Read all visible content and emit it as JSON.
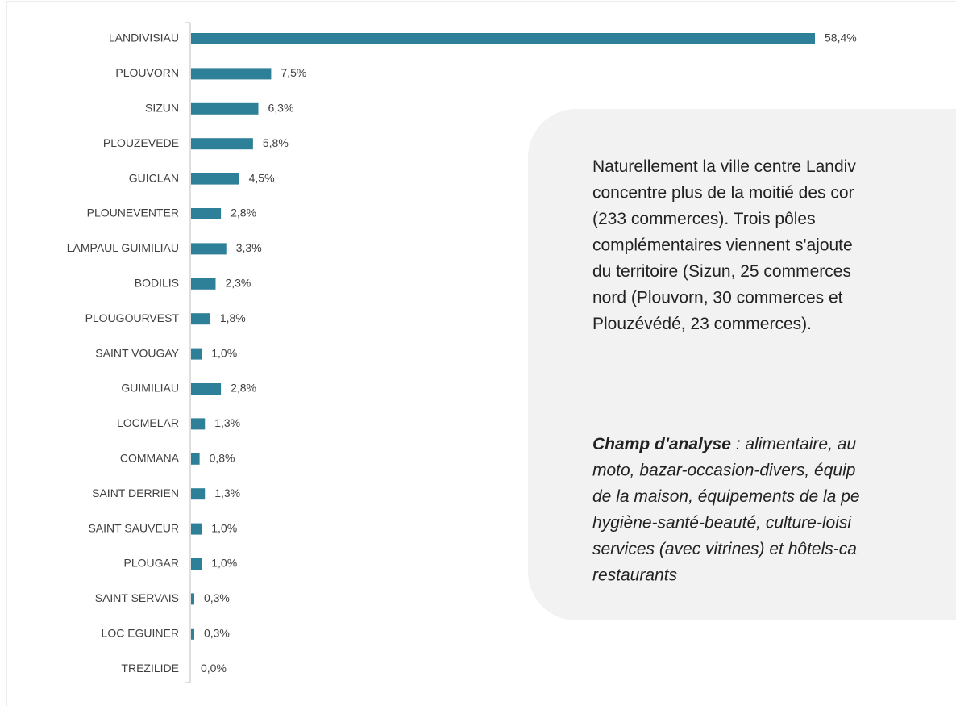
{
  "chart_data": {
    "type": "bar",
    "orientation": "horizontal",
    "color": "#2e7f98",
    "categories": [
      "LANDIVISIAU",
      "PLOUVORN",
      "SIZUN",
      "PLOUZEVEDE",
      "GUICLAN",
      "PLOUNEVENTER",
      "LAMPAUL GUIMILIAU",
      "BODILIS",
      "PLOUGOURVEST",
      "SAINT VOUGAY",
      "GUIMILIAU",
      "LOCMELAR",
      "COMMANA",
      "SAINT DERRIEN",
      "SAINT SAUVEUR",
      "PLOUGAR",
      "SAINT SERVAIS",
      "LOC EGUINER",
      "TREZILIDE"
    ],
    "values": [
      58.4,
      7.5,
      6.3,
      5.8,
      4.5,
      2.8,
      3.3,
      2.3,
      1.8,
      1.0,
      2.8,
      1.3,
      0.8,
      1.3,
      1.0,
      1.0,
      0.3,
      0.3,
      0.0
    ],
    "value_labels": [
      "58,4%",
      "7,5%",
      "6,3%",
      "5,8%",
      "4,5%",
      "2,8%",
      "3,3%",
      "2,3%",
      "1,8%",
      "1,0%",
      "2,8%",
      "1,3%",
      "0,8%",
      "1,3%",
      "1,0%",
      "1,0%",
      "0,3%",
      "0,3%",
      "0,0%"
    ]
  },
  "note_box": {
    "paragraph": [
      "Naturellement la ville centre Landiv",
      "concentre plus de la moitié des cor",
      "(233 commerces). Trois pôles",
      "complémentaires viennent s'ajoute",
      "du territoire (Sizun, 25 commerces",
      "nord (Plouvorn, 30 commerces et",
      "Plouzévédé, 23 commerces)."
    ],
    "scope_label": "Champ d'analyse",
    "scope_lines": [
      " : alimentaire, au",
      "moto, bazar-occasion-divers, équip",
      "de la maison, équipements de la pe",
      "hygiène-santé-beauté, culture-loisi",
      "services (avec vitrines) et hôtels-ca",
      "restaurants"
    ]
  }
}
